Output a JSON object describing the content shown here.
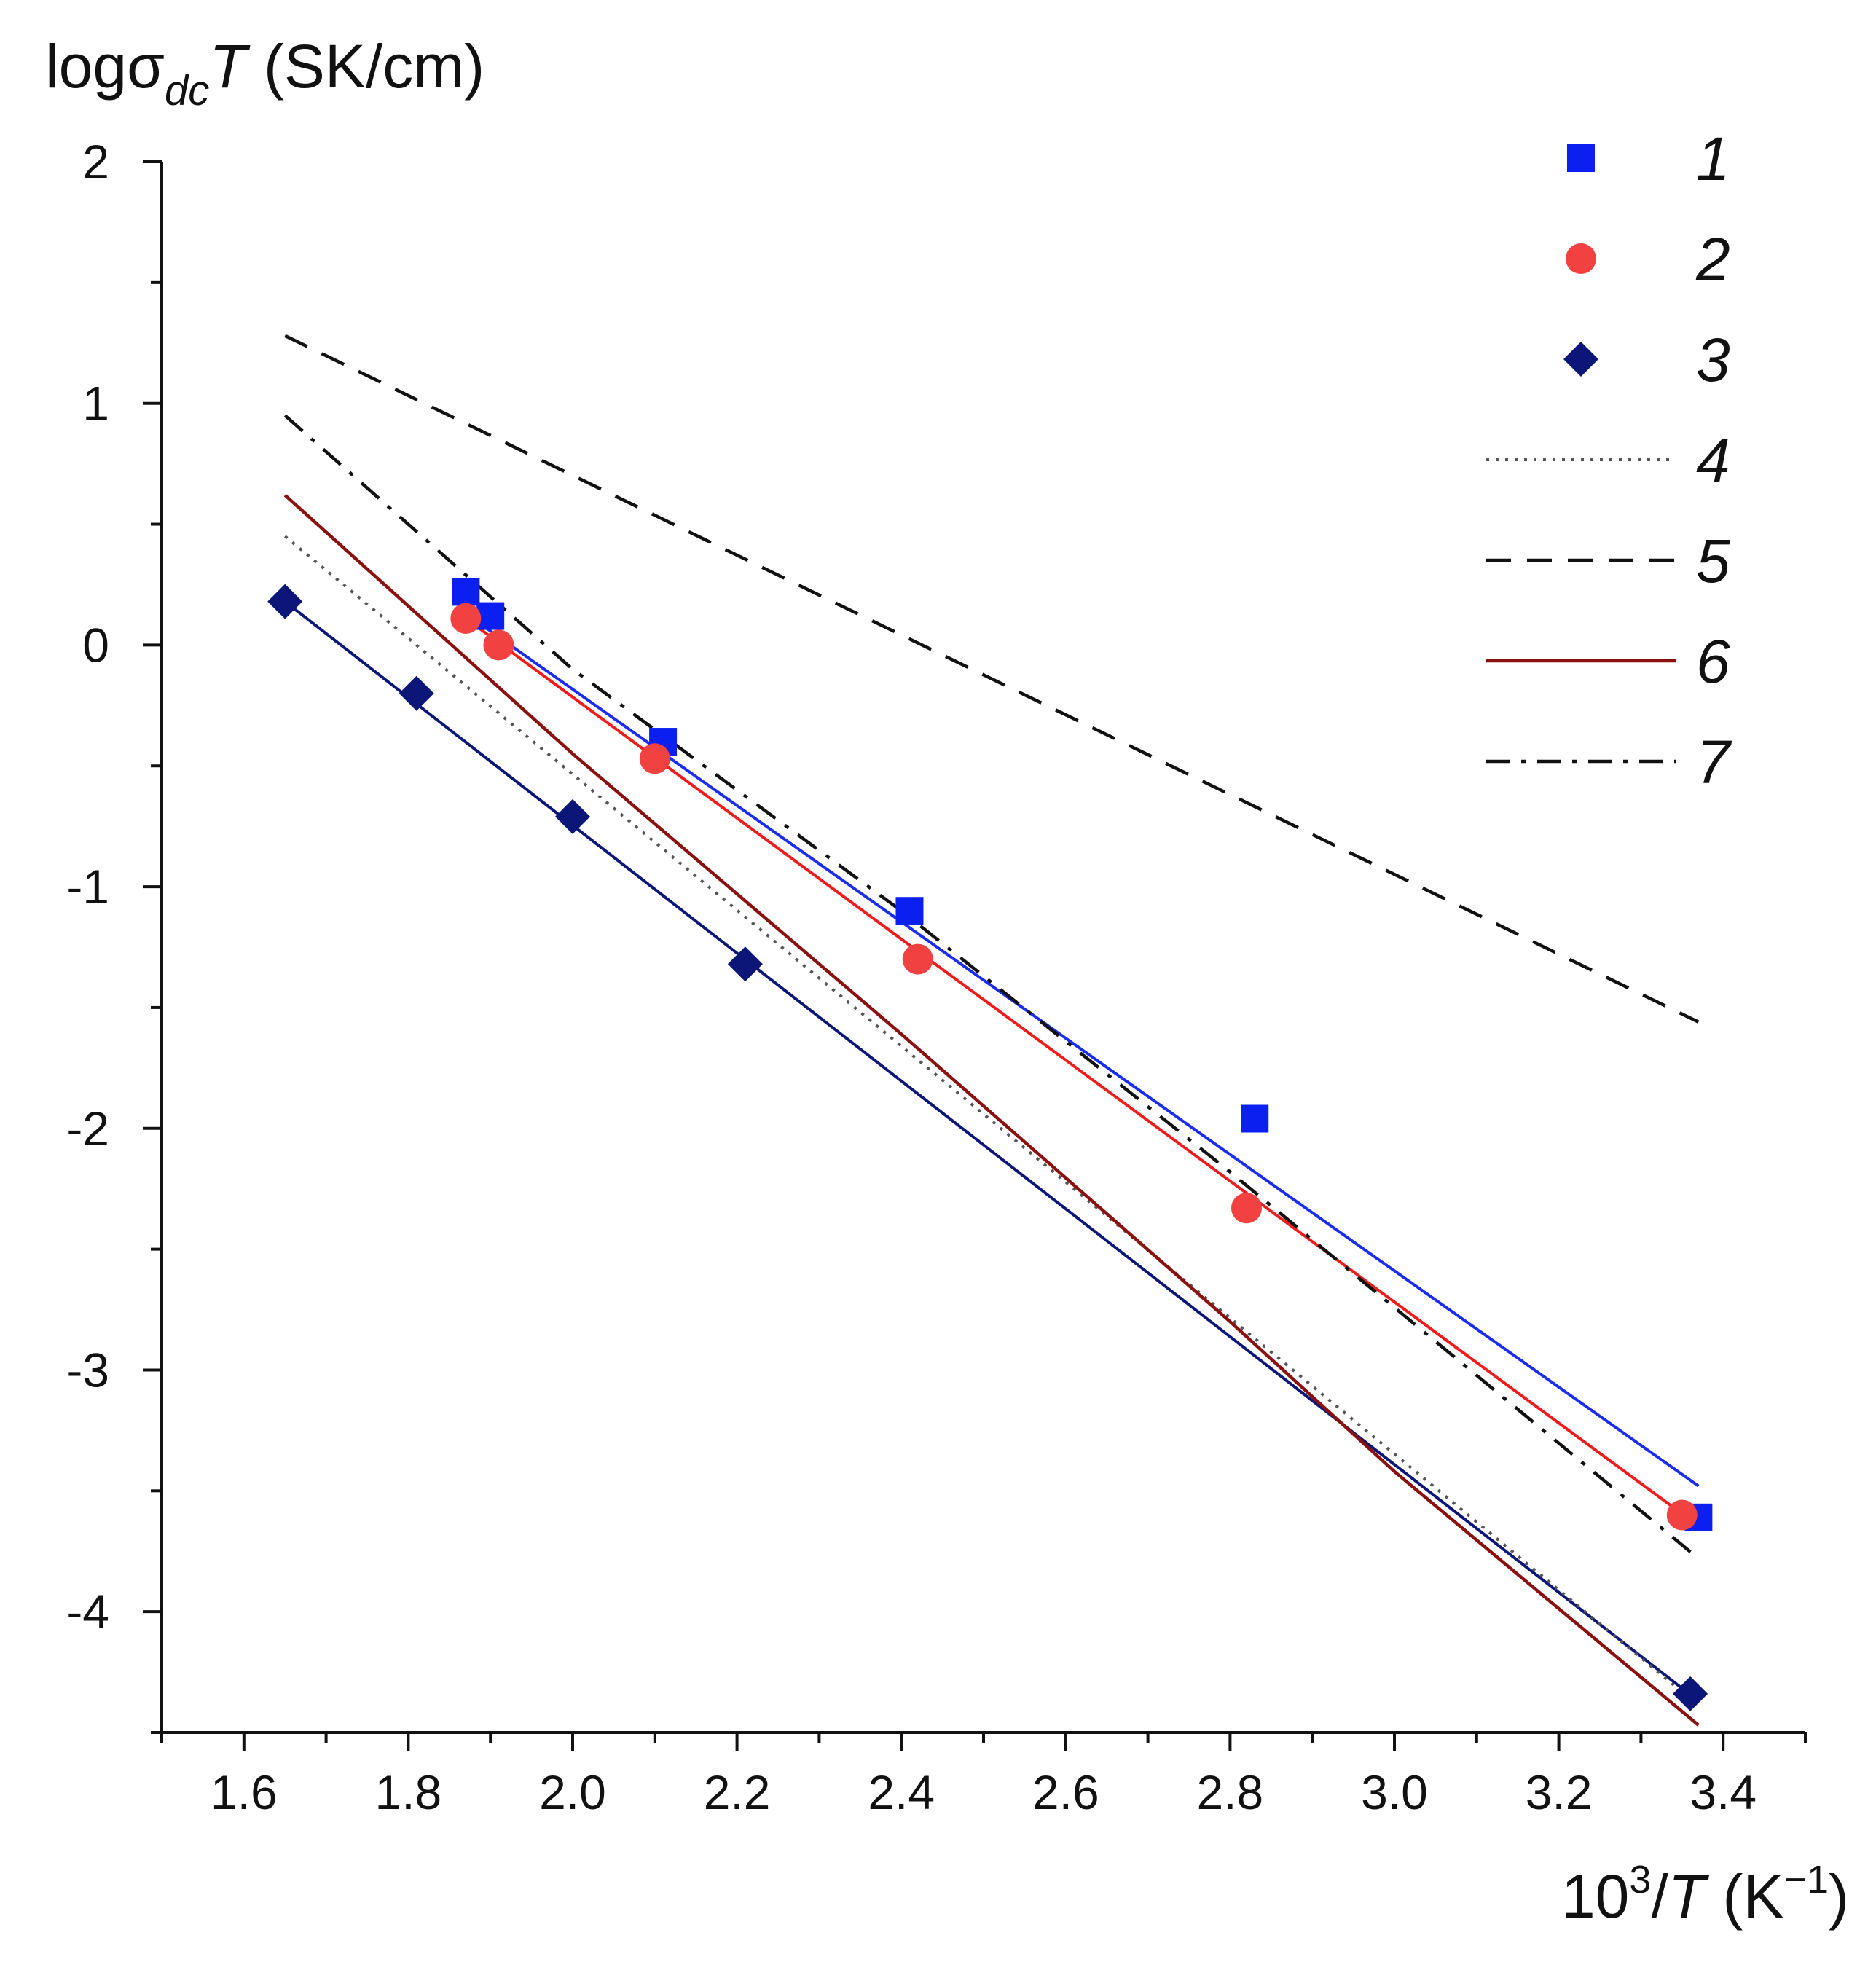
{
  "chart_data": {
    "type": "scatter",
    "title": "",
    "ylabel": {
      "main": "logσ",
      "sub": "dc",
      "var": "T",
      "unit": " (SK/cm)"
    },
    "xlabel": {
      "base": "10",
      "sup": "3",
      "slash": "/",
      "var": "T",
      "unit_open": " (K",
      "unit_sup": "−1",
      "unit_close": ")"
    },
    "xlim": [
      1.5,
      3.5
    ],
    "ylim": [
      -4.5,
      2
    ],
    "xticks": [
      1.6,
      1.8,
      2.0,
      2.2,
      2.4,
      2.6,
      2.8,
      3.0,
      3.2,
      3.4
    ],
    "xtick_labels": [
      "1.6",
      "1.8",
      "2.0",
      "2.2",
      "2.4",
      "2.6",
      "2.8",
      "3.0",
      "3.2",
      "3.4"
    ],
    "yticks": [
      -4,
      -3,
      -2,
      -1,
      0,
      1,
      2
    ],
    "ytick_labels": [
      "-4",
      "-3",
      "-2",
      "-1",
      "0",
      "1",
      "2"
    ],
    "legend_position": "top-right",
    "series": [
      {
        "name": "1",
        "kind": "markers",
        "marker": "square",
        "color": "#0a1ff0",
        "x": [
          1.87,
          1.9,
          2.11,
          2.41,
          2.83,
          3.37
        ],
        "y": [
          0.22,
          0.12,
          -0.4,
          -1.1,
          -1.96,
          -3.61
        ]
      },
      {
        "name": "2",
        "kind": "markers",
        "marker": "circle",
        "color": "#f24141",
        "x": [
          1.87,
          1.91,
          2.1,
          2.42,
          2.82,
          3.35
        ],
        "y": [
          0.11,
          0.0,
          -0.47,
          -1.3,
          -2.33,
          -3.6
        ]
      },
      {
        "name": "3",
        "kind": "markers",
        "marker": "diamond",
        "color": "#0c1678",
        "x": [
          1.65,
          1.81,
          2.0,
          2.21,
          3.36
        ],
        "y": [
          0.18,
          -0.2,
          -0.71,
          -1.32,
          -4.34
        ]
      },
      {
        "name": "4",
        "kind": "line",
        "dash": "dotted",
        "color": "#555555",
        "x": [
          1.65,
          3.36
        ],
        "y": [
          0.45,
          -4.36
        ]
      },
      {
        "name": "5",
        "kind": "line",
        "dash": "dashed",
        "color": "#111111",
        "x": [
          1.65,
          3.37
        ],
        "y": [
          1.28,
          -1.56
        ]
      },
      {
        "name": "6",
        "kind": "line",
        "dash": "solid",
        "color": "#8b1010",
        "x": [
          1.65,
          2.0,
          2.4,
          2.8,
          3.0,
          3.37
        ],
        "y": [
          0.62,
          -0.45,
          -1.61,
          -2.8,
          -3.42,
          -4.47
        ]
      },
      {
        "name": "7",
        "kind": "line",
        "dash": "dashdot",
        "color": "#111111",
        "x": [
          1.65,
          2.0,
          2.4,
          2.8,
          3.37
        ],
        "y": [
          0.95,
          -0.1,
          -1.1,
          -2.18,
          -3.78
        ]
      }
    ],
    "fit_lines": [
      {
        "of_series": "1",
        "color": "#1a2cf2",
        "x": [
          1.87,
          3.37
        ],
        "y": [
          0.13,
          -3.48
        ]
      },
      {
        "of_series": "2",
        "color": "#f01c1c",
        "x": [
          1.87,
          3.36
        ],
        "y": [
          0.11,
          -3.62
        ]
      },
      {
        "of_series": "3",
        "color": "#0c1678",
        "x": [
          1.65,
          3.37
        ],
        "y": [
          0.18,
          -4.37
        ]
      }
    ]
  }
}
